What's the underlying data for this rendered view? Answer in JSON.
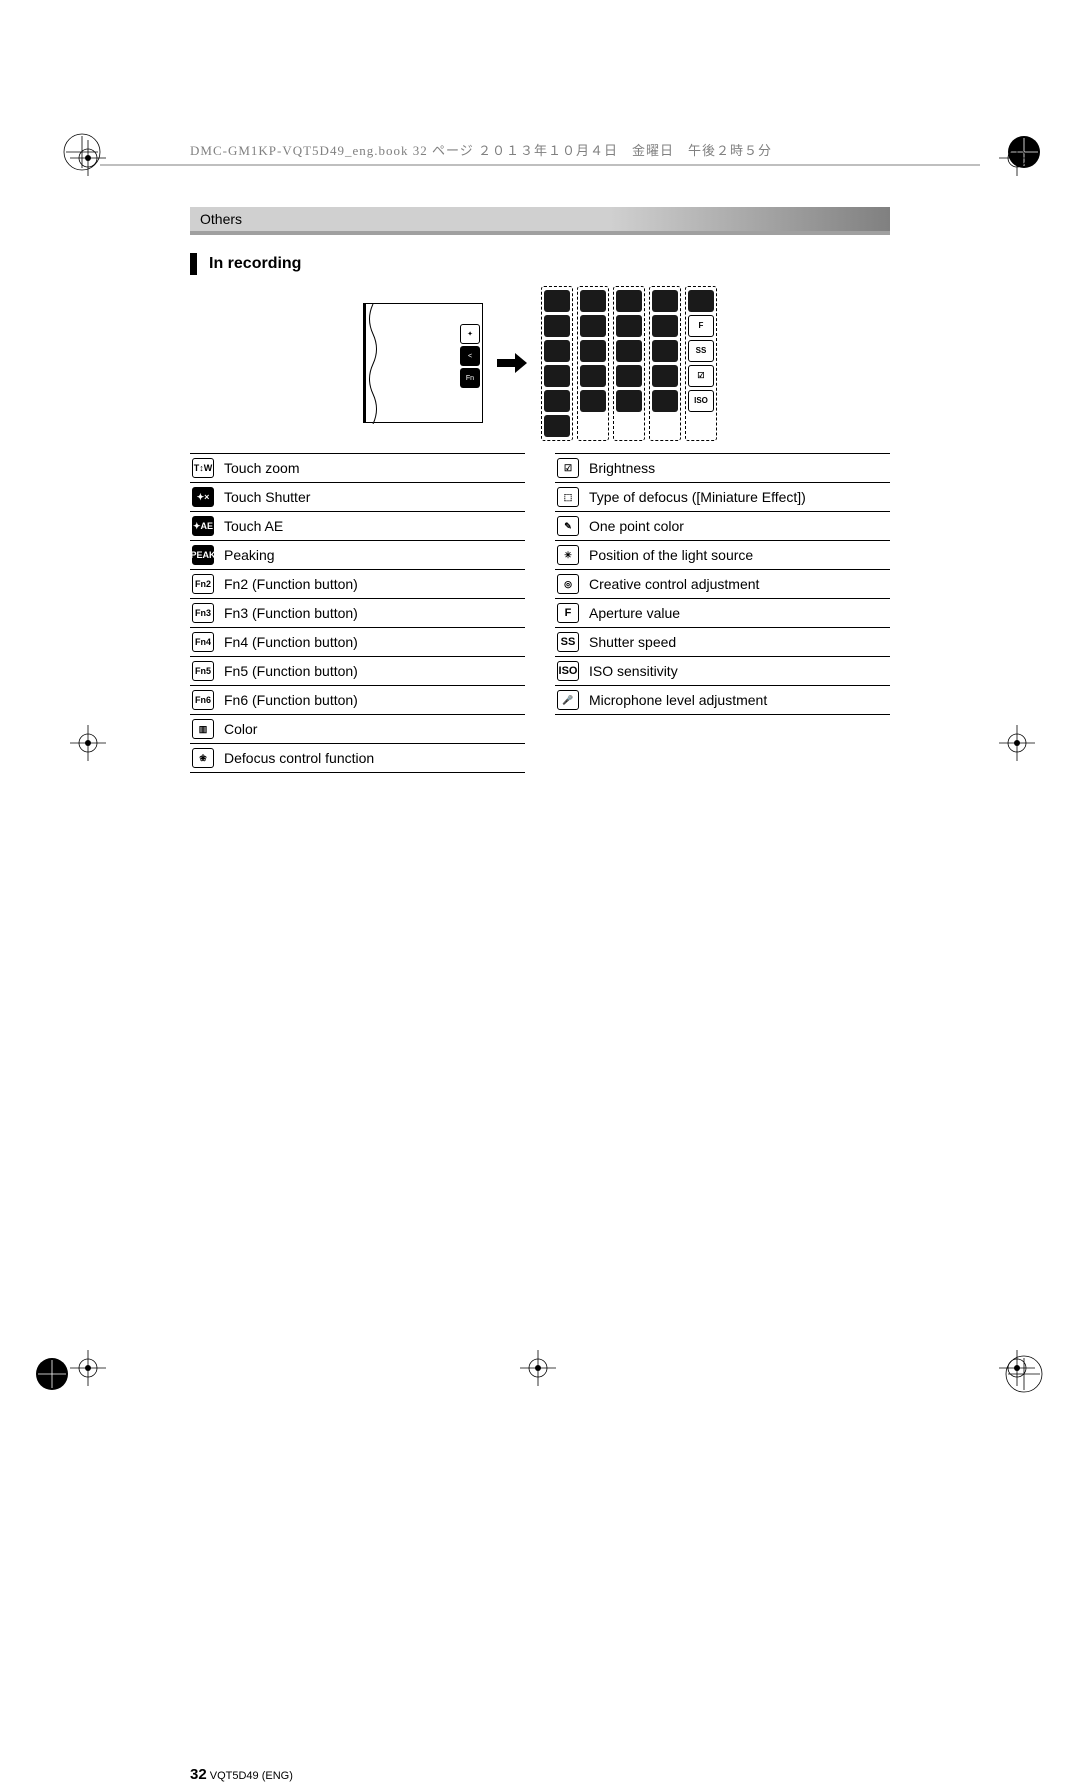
{
  "header_line": "DMC-GM1KP-VQT5D49_eng.book  32 ページ  ２０１３年１０月４日　金曜日　午後２時５分",
  "banner": "Others",
  "section_title": "In recording",
  "left_table": [
    {
      "icon": "T↕W",
      "style": "outline",
      "label": "Touch zoom"
    },
    {
      "icon": "✦×",
      "style": "dark",
      "label": "Touch Shutter"
    },
    {
      "icon": "✦AE",
      "style": "dark",
      "label": "Touch AE"
    },
    {
      "icon": "PEAK",
      "style": "dark",
      "label": "Peaking"
    },
    {
      "icon": "Fn2",
      "style": "outline",
      "label": "Fn2 (Function button)"
    },
    {
      "icon": "Fn3",
      "style": "outline",
      "label": "Fn3 (Function button)"
    },
    {
      "icon": "Fn4",
      "style": "outline",
      "label": "Fn4 (Function button)"
    },
    {
      "icon": "Fn5",
      "style": "outline",
      "label": "Fn5 (Function button)"
    },
    {
      "icon": "Fn6",
      "style": "outline",
      "label": "Fn6 (Function button)"
    },
    {
      "icon": "▥",
      "style": "outline",
      "label": "Color"
    },
    {
      "icon": "❀",
      "style": "outline",
      "label": "Defocus control function"
    }
  ],
  "right_table": [
    {
      "icon": "☑",
      "style": "outline",
      "label": "Brightness"
    },
    {
      "icon": "⬚",
      "style": "outline",
      "label": "Type of defocus ([Miniature Effect])"
    },
    {
      "icon": "✎",
      "style": "outline",
      "label": "One point color"
    },
    {
      "icon": "✳",
      "style": "outline",
      "label": "Position of the light source"
    },
    {
      "icon": "◎",
      "style": "outline",
      "label": "Creative control adjustment"
    },
    {
      "icon": "F",
      "style": "textonly",
      "label": "Aperture value"
    },
    {
      "icon": "SS",
      "style": "textonly",
      "label": "Shutter speed"
    },
    {
      "icon": "ISO",
      "style": "textonly",
      "label": "ISO sensitivity"
    },
    {
      "icon": "🎤",
      "style": "outline",
      "label": "Microphone level adjustment"
    }
  ],
  "tab_labels": [
    "✦",
    "<",
    "Fn"
  ],
  "panels": [
    [
      "",
      "",
      "",
      "",
      "",
      ""
    ],
    [
      "",
      "",
      "",
      "",
      ""
    ],
    [
      "",
      "",
      "",
      "",
      ""
    ],
    [
      "",
      "",
      "",
      "",
      ""
    ],
    [
      "",
      "F",
      "SS",
      "☑",
      "ISO"
    ]
  ],
  "page_num": "32",
  "page_code": "VQT5D49 (ENG)",
  "colors": {
    "banner_start": "#d0d0d0",
    "banner_end": "#808080",
    "text": "#000000",
    "grey_text": "#808080"
  }
}
